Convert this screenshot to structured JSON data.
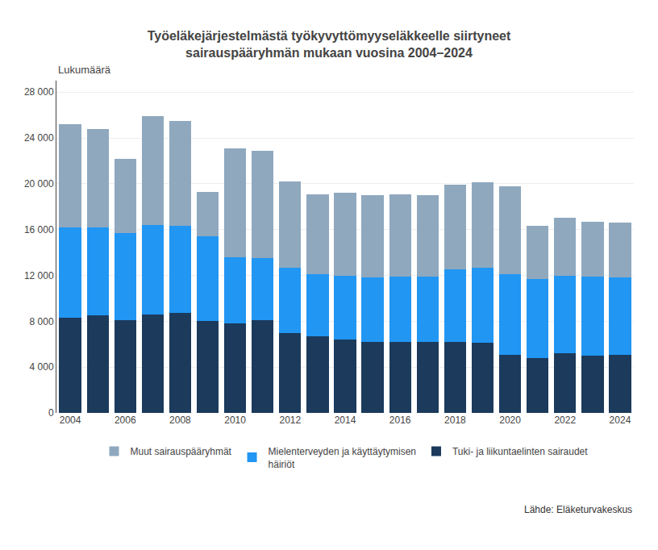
{
  "chart_data": {
    "type": "bar",
    "stacked": true,
    "title": "Työeläkejärjestelmästä työkyvyttömyyseläkkeelle siirtyneet\nsairauspääryhmän mukaan vuosina 2004–2024",
    "ylabel": "Lukumäärä",
    "annotations": [
      "Lähde: Eläketurvakeskus"
    ],
    "categories": [
      "2004",
      null,
      "2006",
      null,
      "2008",
      null,
      "2010",
      null,
      "2012",
      null,
      "2014",
      null,
      "2016",
      null,
      "2018",
      null,
      "2020",
      null,
      "2022",
      null,
      "2024"
    ],
    "series": [
      {
        "name": "Tuki- ja liikuntaelinten sairaudet",
        "color": "#1b3a5c",
        "values": [
          8300,
          8500,
          8100,
          8600,
          8700,
          8000,
          7800,
          8100,
          7000,
          6700,
          6400,
          6200,
          6200,
          6200,
          6200,
          6100,
          5100,
          4800,
          5200,
          5000,
          5100
        ]
      },
      {
        "name": "Mielenterveyden ja käyttäytymisen\nhäiriöt",
        "color": "#2196f3",
        "values": [
          7900,
          7700,
          7600,
          7800,
          7600,
          7400,
          5800,
          5400,
          5700,
          5400,
          5600,
          5600,
          5700,
          5700,
          6300,
          6600,
          7000,
          6900,
          6800,
          6900,
          6700
        ]
      },
      {
        "name": "Muut sairauspääryhmät",
        "color": "#8fa8be",
        "values": [
          9000,
          8600,
          6500,
          9500,
          9200,
          3900,
          9500,
          9400,
          7500,
          7000,
          7200,
          7200,
          7200,
          7100,
          7400,
          7400,
          7700,
          4600,
          5000,
          4800,
          4800
        ]
      }
    ],
    "ylim": [
      0,
      29000
    ],
    "yticks": [
      0,
      {
        "value": 4000,
        "label": "4 000"
      },
      {
        "value": 8000,
        "label": "8 000"
      },
      {
        "value": 12000,
        "label": "12 000"
      },
      {
        "value": 16000,
        "label": "16 000"
      },
      {
        "value": 20000,
        "label": "20 000"
      },
      {
        "value": 24000,
        "label": "24 000"
      },
      {
        "value": 28000,
        "label": "28 000"
      }
    ],
    "grid": true,
    "legend": "bottom"
  }
}
